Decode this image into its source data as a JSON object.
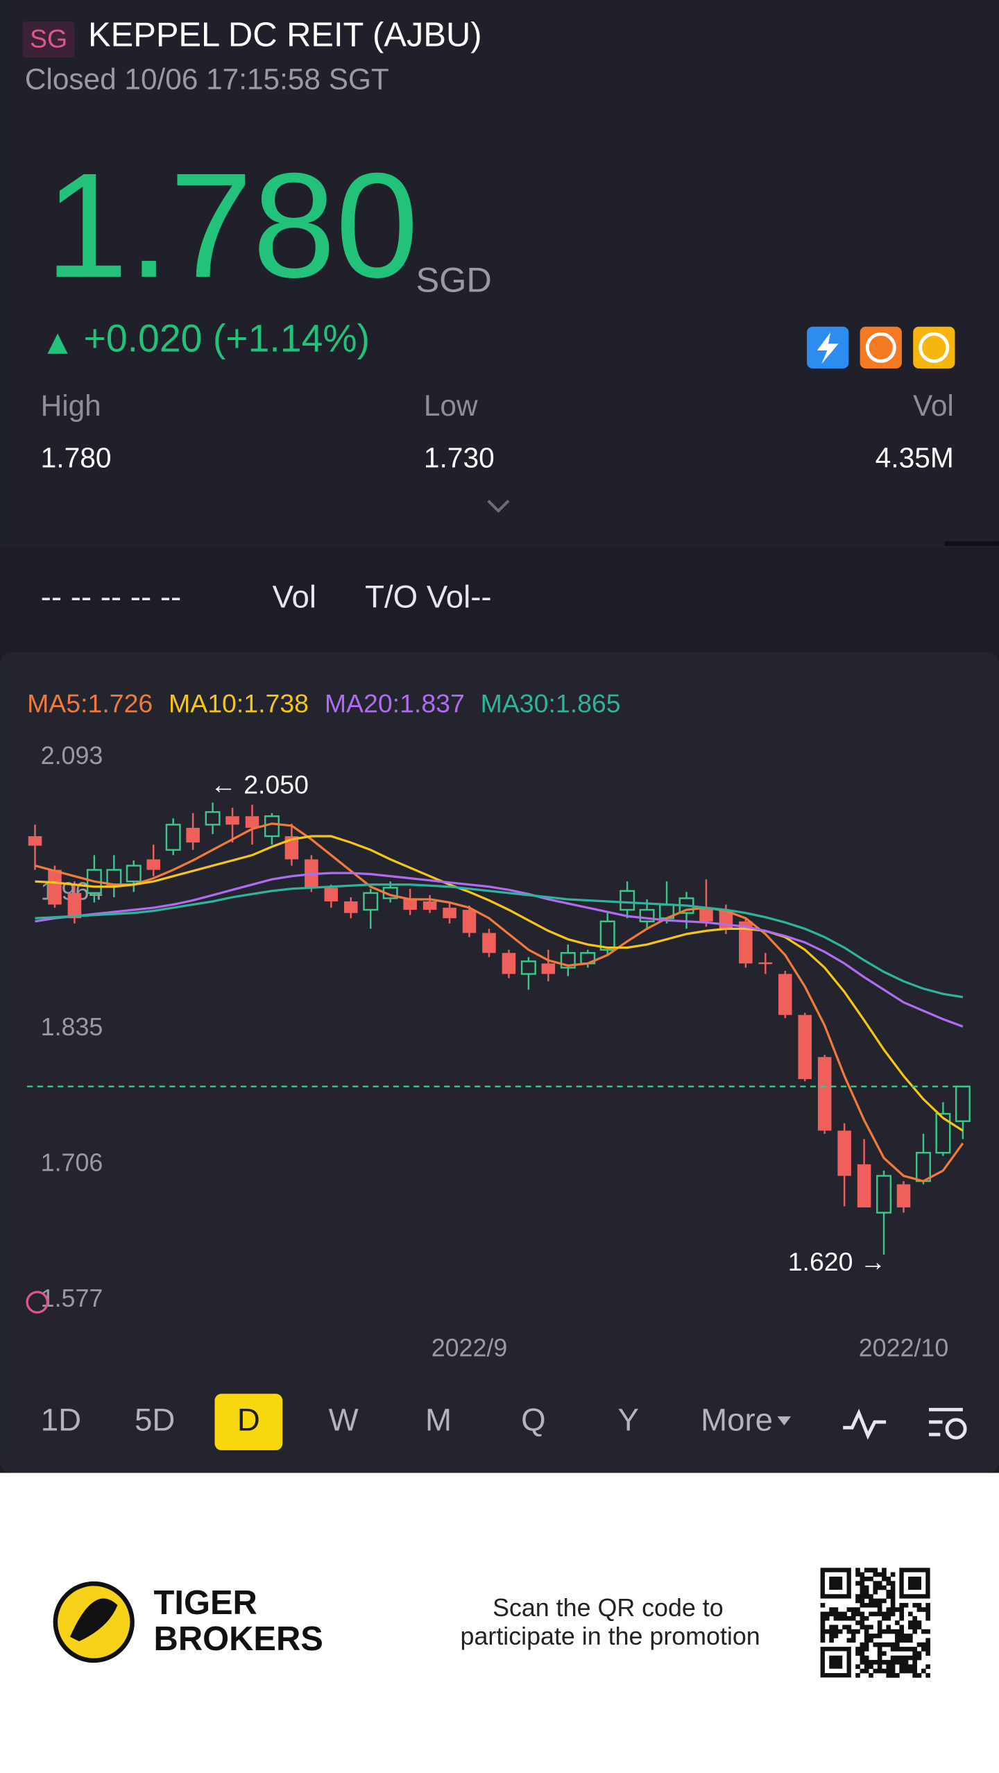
{
  "header": {
    "market": "SG",
    "name": "KEPPEL DC REIT (AJBU)",
    "status": "Closed 10/06 17:15:58 SGT"
  },
  "quote": {
    "price": "1.780",
    "currency": "SGD",
    "change": "+0.020 (+1.14%)"
  },
  "stats": [
    {
      "label": "High",
      "value": "1.780"
    },
    {
      "label": "Low",
      "value": "1.730"
    },
    {
      "label": "Vol",
      "value": "4.35M"
    }
  ],
  "indicators": {
    "placeholders": "-- -- -- -- --",
    "vol": "Vol",
    "turnover": "T/O Vol--"
  },
  "chart_data": {
    "type": "candlestick",
    "categories": [
      null,
      null,
      null,
      null,
      null,
      null,
      null,
      null,
      null,
      null,
      null,
      null,
      null,
      null,
      null,
      null,
      null,
      null,
      null,
      null,
      null,
      null,
      "2022/9",
      null,
      null,
      null,
      null,
      null,
      null,
      null,
      null,
      null,
      null,
      null,
      null,
      null,
      null,
      null,
      null,
      null,
      null,
      null,
      null,
      null,
      "2022/10",
      null,
      null,
      null
    ],
    "open": [
      2.018,
      1.986,
      1.964,
      1.964,
      1.972,
      1.975,
      1.996,
      2.005,
      2.026,
      2.029,
      2.037,
      2.037,
      2.018,
      2.018,
      1.996,
      1.969,
      1.956,
      1.948,
      1.959,
      1.959,
      1.956,
      1.95,
      1.948,
      1.926,
      1.907,
      1.887,
      1.897,
      1.893,
      1.897,
      1.91,
      1.948,
      1.937,
      1.94,
      1.945,
      1.95,
      1.948,
      1.937,
      1.898,
      1.887,
      1.848,
      1.808,
      1.738,
      1.706,
      1.66,
      1.687,
      1.69,
      1.717,
      1.747
    ],
    "high": [
      2.029,
      1.99,
      1.975,
      2.0,
      2.0,
      1.995,
      2.01,
      2.035,
      2.04,
      2.05,
      2.045,
      2.048,
      2.04,
      2.03,
      2.0,
      1.972,
      1.96,
      1.968,
      1.975,
      1.968,
      1.962,
      1.955,
      1.952,
      1.93,
      1.91,
      1.903,
      1.91,
      1.915,
      1.91,
      1.945,
      1.975,
      1.958,
      1.975,
      1.965,
      1.977,
      1.953,
      1.94,
      1.907,
      1.89,
      1.85,
      1.81,
      1.745,
      1.73,
      1.7,
      1.69,
      1.735,
      1.765,
      1.78
    ],
    "low": [
      1.986,
      1.95,
      1.935,
      1.955,
      1.96,
      1.965,
      1.98,
      2.0,
      2.005,
      2.02,
      2.012,
      2.01,
      2.01,
      1.99,
      1.965,
      1.95,
      1.94,
      1.93,
      1.955,
      1.943,
      1.945,
      1.935,
      1.922,
      1.903,
      1.883,
      1.872,
      1.88,
      1.885,
      1.893,
      1.905,
      1.94,
      1.93,
      1.935,
      1.93,
      1.932,
      1.925,
      1.893,
      1.887,
      1.845,
      1.785,
      1.735,
      1.666,
      1.665,
      1.62,
      1.66,
      1.687,
      1.714,
      1.73
    ],
    "close": [
      2.009,
      1.953,
      1.94,
      1.986,
      1.986,
      1.99,
      1.986,
      2.029,
      2.012,
      2.041,
      2.029,
      2.026,
      2.037,
      1.996,
      1.969,
      1.956,
      1.945,
      1.964,
      1.969,
      1.948,
      1.948,
      1.94,
      1.926,
      1.907,
      1.887,
      1.899,
      1.887,
      1.907,
      1.907,
      1.937,
      1.966,
      1.948,
      1.953,
      1.959,
      1.937,
      1.929,
      1.897,
      1.897,
      1.848,
      1.787,
      1.738,
      1.695,
      1.665,
      1.695,
      1.665,
      1.717,
      1.754,
      1.78
    ],
    "up_color": "#3cc68a",
    "down_color": "#f0605a",
    "flat_color": "#9a9aa6",
    "series": [
      {
        "name": "MA5:1.726",
        "color": "#f07a3c",
        "values": [
          1.99,
          1.985,
          1.98,
          1.975,
          1.972,
          1.972,
          1.978,
          1.986,
          1.995,
          2.005,
          2.015,
          2.025,
          2.03,
          2.028,
          2.015,
          2.0,
          1.985,
          1.97,
          1.962,
          1.958,
          1.958,
          1.955,
          1.95,
          1.94,
          1.925,
          1.91,
          1.9,
          1.895,
          1.897,
          1.905,
          1.918,
          1.93,
          1.94,
          1.948,
          1.95,
          1.947,
          1.94,
          1.925,
          1.905,
          1.875,
          1.838,
          1.79,
          1.748,
          1.712,
          1.695,
          1.69,
          1.7,
          1.726
        ]
      },
      {
        "name": "MA10:1.738",
        "color": "#f5c518",
        "values": [
          1.975,
          1.974,
          1.972,
          1.97,
          1.97,
          1.972,
          1.975,
          1.98,
          1.985,
          1.99,
          1.995,
          2.0,
          2.008,
          2.015,
          2.018,
          2.018,
          2.012,
          2.005,
          1.996,
          1.988,
          1.98,
          1.972,
          1.965,
          1.957,
          1.948,
          1.938,
          1.928,
          1.92,
          1.915,
          1.912,
          1.912,
          1.915,
          1.92,
          1.925,
          1.928,
          1.93,
          1.93,
          1.928,
          1.922,
          1.91,
          1.893,
          1.87,
          1.843,
          1.815,
          1.79,
          1.768,
          1.75,
          1.738
        ]
      },
      {
        "name": "MA20:1.837",
        "color": "#b06cf0",
        "values": [
          1.937,
          1.94,
          1.942,
          1.944,
          1.946,
          1.948,
          1.95,
          1.953,
          1.957,
          1.962,
          1.967,
          1.972,
          1.977,
          1.98,
          1.982,
          1.983,
          1.983,
          1.982,
          1.98,
          1.978,
          1.976,
          1.974,
          1.972,
          1.97,
          1.967,
          1.963,
          1.958,
          1.954,
          1.95,
          1.946,
          1.942,
          1.94,
          1.938,
          1.937,
          1.936,
          1.934,
          1.932,
          1.928,
          1.923,
          1.917,
          1.908,
          1.897,
          1.884,
          1.872,
          1.86,
          1.852,
          1.844,
          1.837
        ]
      },
      {
        "name": "MA30:1.865",
        "color": "#2fb39a",
        "values": [
          1.94,
          1.941,
          1.942,
          1.943,
          1.944,
          1.945,
          1.947,
          1.95,
          1.953,
          1.956,
          1.96,
          1.963,
          1.966,
          1.968,
          1.969,
          1.97,
          1.971,
          1.972,
          1.972,
          1.972,
          1.971,
          1.97,
          1.968,
          1.966,
          1.964,
          1.962,
          1.96,
          1.958,
          1.957,
          1.956,
          1.955,
          1.954,
          1.953,
          1.952,
          1.95,
          1.948,
          1.945,
          1.941,
          1.936,
          1.93,
          1.922,
          1.912,
          1.9,
          1.889,
          1.88,
          1.873,
          1.868,
          1.865
        ]
      }
    ],
    "max_label": "← 2.050",
    "min_label": "1.620 →",
    "ylim": [
      1.577,
      2.093
    ],
    "yticks": [
      2.093,
      1.964,
      1.835,
      1.706,
      1.577
    ],
    "grid": false,
    "last_price_line": true
  },
  "periods": [
    "1D",
    "5D",
    "D",
    "W",
    "M",
    "Q",
    "Y",
    "More"
  ],
  "active_period": "D",
  "footer": {
    "brand": [
      "TIGER",
      "BROKERS"
    ],
    "promo": [
      "Scan the QR code to",
      "participate in the promotion"
    ]
  }
}
